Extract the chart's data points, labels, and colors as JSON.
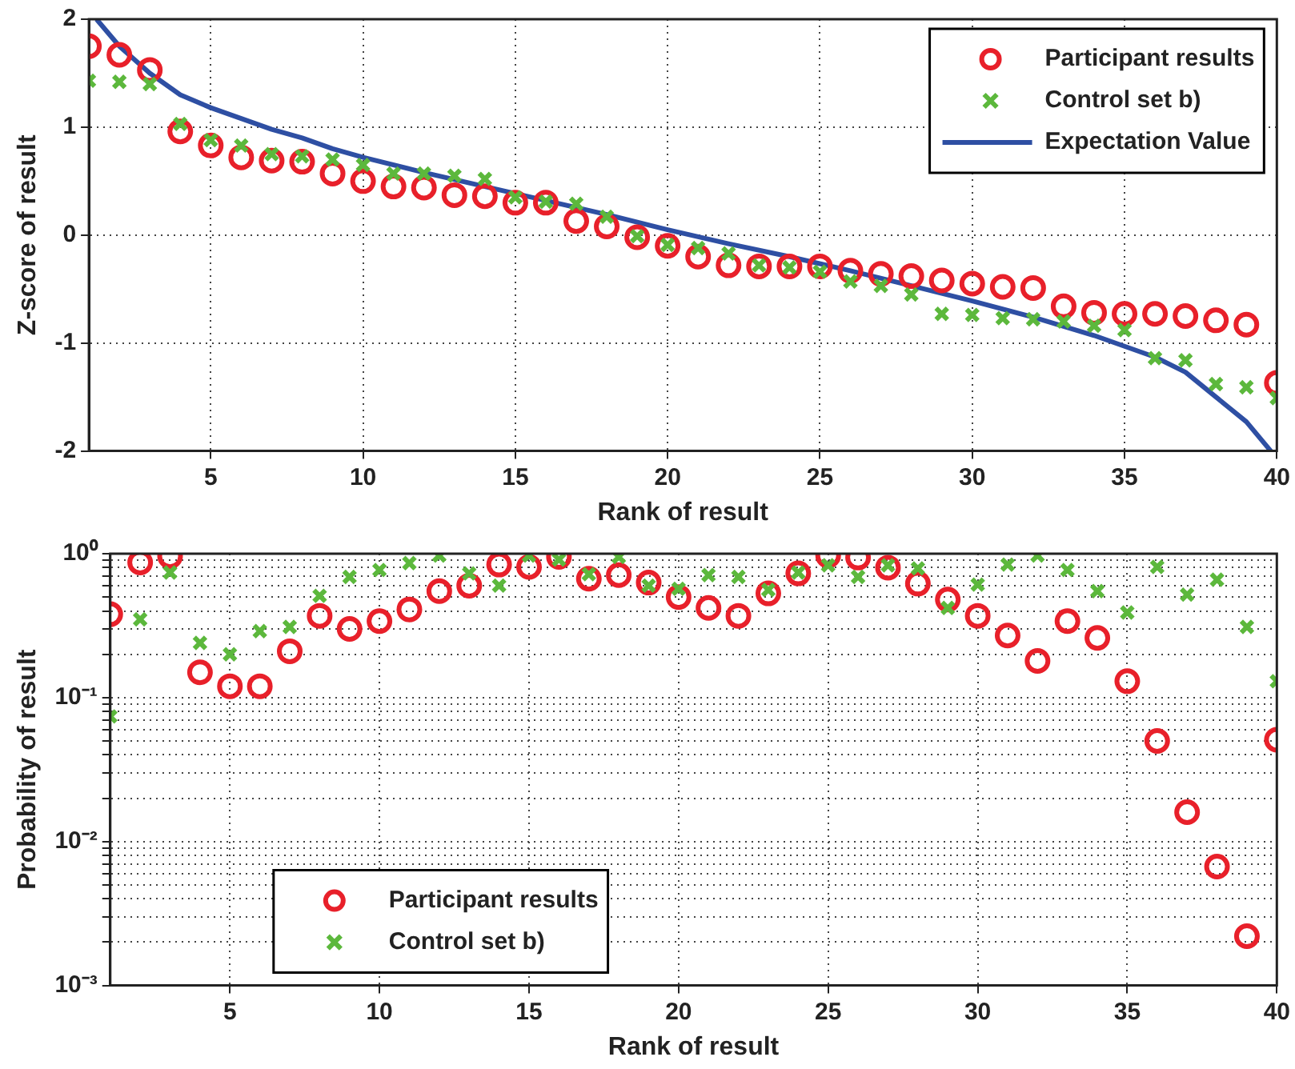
{
  "chart_data": [
    {
      "type": "scatter",
      "xlabel": "Rank of result",
      "ylabel": "Z-score of result",
      "x": [
        1,
        2,
        3,
        4,
        5,
        6,
        7,
        8,
        9,
        10,
        11,
        12,
        13,
        14,
        15,
        16,
        17,
        18,
        19,
        20,
        21,
        22,
        23,
        24,
        25,
        26,
        27,
        28,
        29,
        30,
        31,
        32,
        33,
        34,
        35,
        36,
        37,
        38,
        39,
        40
      ],
      "xlim": [
        1,
        40
      ],
      "xticks": [
        5,
        10,
        15,
        20,
        25,
        30,
        35,
        40
      ],
      "ylim": [
        -2,
        2
      ],
      "yticks": [
        -2,
        -1,
        0,
        1,
        2
      ],
      "grid": true,
      "legend": "top right",
      "series": [
        {
          "name": "Participant results",
          "color": "#e8202a",
          "marker": "circle",
          "values": [
            1.75,
            1.67,
            1.53,
            0.96,
            0.83,
            0.72,
            0.69,
            0.68,
            0.57,
            0.5,
            0.45,
            0.44,
            0.37,
            0.36,
            0.3,
            0.3,
            0.13,
            0.08,
            -0.02,
            -0.1,
            -0.2,
            -0.28,
            -0.29,
            -0.29,
            -0.29,
            -0.33,
            -0.36,
            -0.38,
            -0.42,
            -0.45,
            -0.48,
            -0.49,
            -0.66,
            -0.72,
            -0.73,
            -0.73,
            -0.75,
            -0.79,
            -0.83,
            -1.37
          ]
        },
        {
          "name": "Control set b)",
          "color": "#5cb83c",
          "marker": "cross",
          "values": [
            1.43,
            1.42,
            1.4,
            1.03,
            0.88,
            0.83,
            0.75,
            0.73,
            0.7,
            0.65,
            0.57,
            0.57,
            0.55,
            0.52,
            0.35,
            0.31,
            0.29,
            0.17,
            -0.01,
            -0.09,
            -0.12,
            -0.17,
            -0.28,
            -0.3,
            -0.34,
            -0.43,
            -0.47,
            -0.55,
            -0.73,
            -0.74,
            -0.77,
            -0.78,
            -0.8,
            -0.84,
            -0.88,
            -1.14,
            -1.16,
            -1.38,
            -1.41,
            -1.51
          ]
        },
        {
          "name": "Expectation Value",
          "type": "line",
          "color": "#2e4fa3",
          "marker": "none",
          "x": [
            1.25,
            2,
            3,
            4,
            5,
            6,
            7,
            8,
            9,
            10,
            12,
            14,
            16,
            18,
            20,
            22,
            24,
            26,
            28,
            30,
            32,
            34,
            35,
            36,
            37,
            38,
            39,
            39.8
          ],
          "values": [
            2,
            1.75,
            1.5,
            1.3,
            1.18,
            1.08,
            0.98,
            0.9,
            0.8,
            0.72,
            0.58,
            0.45,
            0.32,
            0.19,
            0.05,
            -0.08,
            -0.2,
            -0.33,
            -0.47,
            -0.61,
            -0.76,
            -0.93,
            -1.03,
            -1.13,
            -1.27,
            -1.5,
            -1.73,
            -2
          ]
        }
      ]
    },
    {
      "type": "scatter",
      "xlabel": "Rank of result",
      "ylabel": "Probability of result",
      "log": "y",
      "x": [
        1,
        2,
        3,
        4,
        5,
        6,
        7,
        8,
        9,
        10,
        11,
        12,
        13,
        14,
        15,
        16,
        17,
        18,
        19,
        20,
        21,
        22,
        23,
        24,
        25,
        26,
        27,
        28,
        29,
        30,
        31,
        32,
        33,
        34,
        35,
        36,
        37,
        38,
        39,
        40
      ],
      "xlim": [
        1,
        40
      ],
      "xticks": [
        5,
        10,
        15,
        20,
        25,
        30,
        35,
        40
      ],
      "ylim": [
        0.001,
        1
      ],
      "yticks": [
        {
          "value": 0.001,
          "label": "10⁻³"
        },
        {
          "value": 0.002,
          "label": null
        },
        {
          "value": 0.003,
          "label": null
        },
        {
          "value": 0.004,
          "label": null
        },
        {
          "value": 0.005,
          "label": null
        },
        {
          "value": 0.006,
          "label": null
        },
        {
          "value": 0.007,
          "label": null
        },
        {
          "value": 0.008,
          "label": null
        },
        {
          "value": 0.009,
          "label": null
        },
        {
          "value": 0.01,
          "label": "10⁻²"
        },
        {
          "value": 0.02,
          "label": null
        },
        {
          "value": 0.03,
          "label": null
        },
        {
          "value": 0.04,
          "label": null
        },
        {
          "value": 0.05,
          "label": null
        },
        {
          "value": 0.06,
          "label": null
        },
        {
          "value": 0.07,
          "label": null
        },
        {
          "value": 0.08,
          "label": null
        },
        {
          "value": 0.09,
          "label": null
        },
        {
          "value": 0.1,
          "label": "10⁻¹"
        },
        {
          "value": 0.2,
          "label": null
        },
        {
          "value": 0.3,
          "label": null
        },
        {
          "value": 0.4,
          "label": null
        },
        {
          "value": 0.5,
          "label": null
        },
        {
          "value": 0.6,
          "label": null
        },
        {
          "value": 0.7,
          "label": null
        },
        {
          "value": 0.8,
          "label": null
        },
        {
          "value": 0.9,
          "label": null
        },
        {
          "value": 1,
          "label": "10⁰"
        }
      ],
      "grid": true,
      "legend": "bottom left",
      "series": [
        {
          "name": "Participant results",
          "color": "#e8202a",
          "marker": "circle",
          "values": [
            0.38,
            0.87,
            0.96,
            0.15,
            0.12,
            0.12,
            0.21,
            0.37,
            0.3,
            0.34,
            0.41,
            0.55,
            0.6,
            0.84,
            0.81,
            0.95,
            0.67,
            0.71,
            0.63,
            0.5,
            0.42,
            0.37,
            0.53,
            0.73,
            0.97,
            0.94,
            0.8,
            0.62,
            0.48,
            0.37,
            0.27,
            0.18,
            0.34,
            0.26,
            0.13,
            0.05,
            0.016,
            0.0067,
            0.0022,
            0.051
          ]
        },
        {
          "name": "Control set b)",
          "color": "#5cb83c",
          "marker": "cross",
          "values": [
            0.074,
            0.35,
            0.74,
            0.24,
            0.2,
            0.29,
            0.31,
            0.51,
            0.69,
            0.77,
            0.86,
            0.97,
            0.73,
            0.6,
            0.97,
            0.91,
            0.72,
            0.95,
            0.6,
            0.57,
            0.71,
            0.69,
            0.56,
            0.74,
            0.83,
            0.69,
            0.83,
            0.79,
            0.42,
            0.61,
            0.84,
            0.97,
            0.77,
            0.55,
            0.39,
            0.81,
            0.52,
            0.66,
            0.31,
            0.13
          ]
        }
      ]
    }
  ]
}
